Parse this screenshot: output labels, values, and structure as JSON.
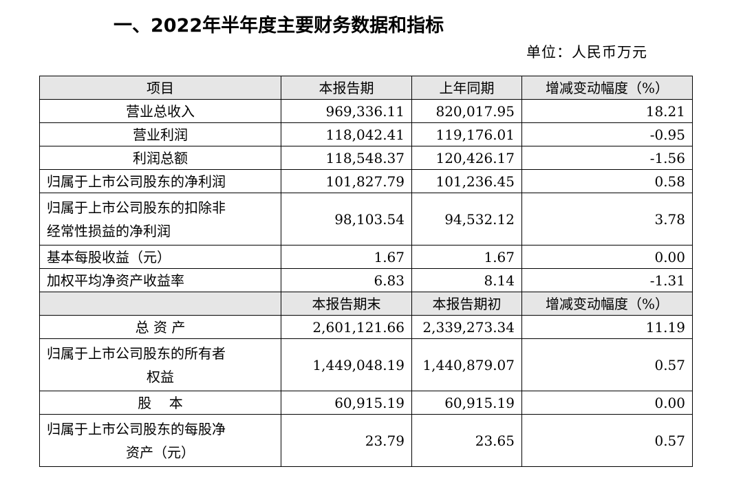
{
  "title": "一、2022年半年度主要财务数据和指标",
  "unit": "单位：人民币万元",
  "header": {
    "item": "项目",
    "current": "本报告期",
    "prior": "上年同期",
    "change": "增减变动幅度（%）"
  },
  "rows": [
    {
      "label": "营业总收入",
      "current": "969,336.11",
      "prior": "820,017.95",
      "change": "18.21"
    },
    {
      "label": "营业利润",
      "current": "118,042.41",
      "prior": "119,176.01",
      "change": "-0.95"
    },
    {
      "label": "利润总额",
      "current": "118,548.37",
      "prior": "120,426.17",
      "change": "-1.56"
    },
    {
      "label": "归属于上市公司股东的净利润",
      "current": "101,827.79",
      "prior": "101,236.45",
      "change": "0.58"
    },
    {
      "label_line1": "归属于上市公司股东的扣除非",
      "label_line2": "经常性损益的净利润",
      "current": "98,103.54",
      "prior": "94,532.12",
      "change": "3.78"
    },
    {
      "label": "基本每股收益（元）",
      "current": "1.67",
      "prior": "1.67",
      "change": "0.00"
    },
    {
      "label": "加权平均净资产收益率",
      "current": "6.83",
      "prior": "8.14",
      "change": "-1.31"
    }
  ],
  "subheader": {
    "item": "",
    "current": "本报告期末",
    "prior": "本报告期初",
    "change": "增减变动幅度（%）"
  },
  "rows2": [
    {
      "label": "总 资 产",
      "current": "2,601,121.66",
      "prior": "2,339,273.34",
      "change": "11.19"
    },
    {
      "label_line1": "归属于上市公司股东的所有者",
      "label_line2": "权益",
      "current": "1,449,048.19",
      "prior": "1,440,879.07",
      "change": "0.57"
    },
    {
      "label": "股    本",
      "current": "60,915.19",
      "prior": "60,915.19",
      "change": "0.00"
    },
    {
      "label_line1": "归属于上市公司股东的每股净",
      "label_line2": "资产（元）",
      "current": "23.79",
      "prior": "23.65",
      "change": "0.57"
    }
  ]
}
